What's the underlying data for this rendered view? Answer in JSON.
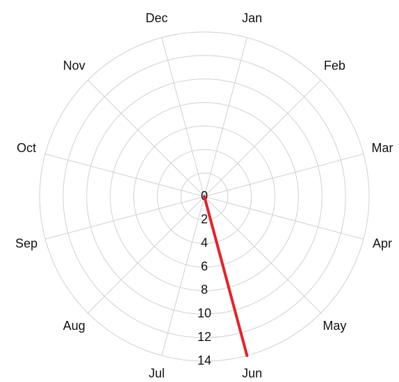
{
  "chart_data": {
    "type": "radar",
    "categories": [
      "Jan",
      "Feb",
      "Mar",
      "Apr",
      "May",
      "Jun",
      "Jul",
      "Aug",
      "Sep",
      "Oct",
      "Nov",
      "Dec"
    ],
    "series": [
      {
        "name": null,
        "color": "#e8202a",
        "values": [
          0,
          0,
          0,
          0,
          0,
          14,
          0,
          0,
          0,
          0,
          0,
          0
        ]
      }
    ],
    "rlim": [
      0,
      14
    ],
    "rticks": [
      0,
      2,
      4,
      6,
      8,
      10,
      12,
      14
    ],
    "grid": true
  }
}
